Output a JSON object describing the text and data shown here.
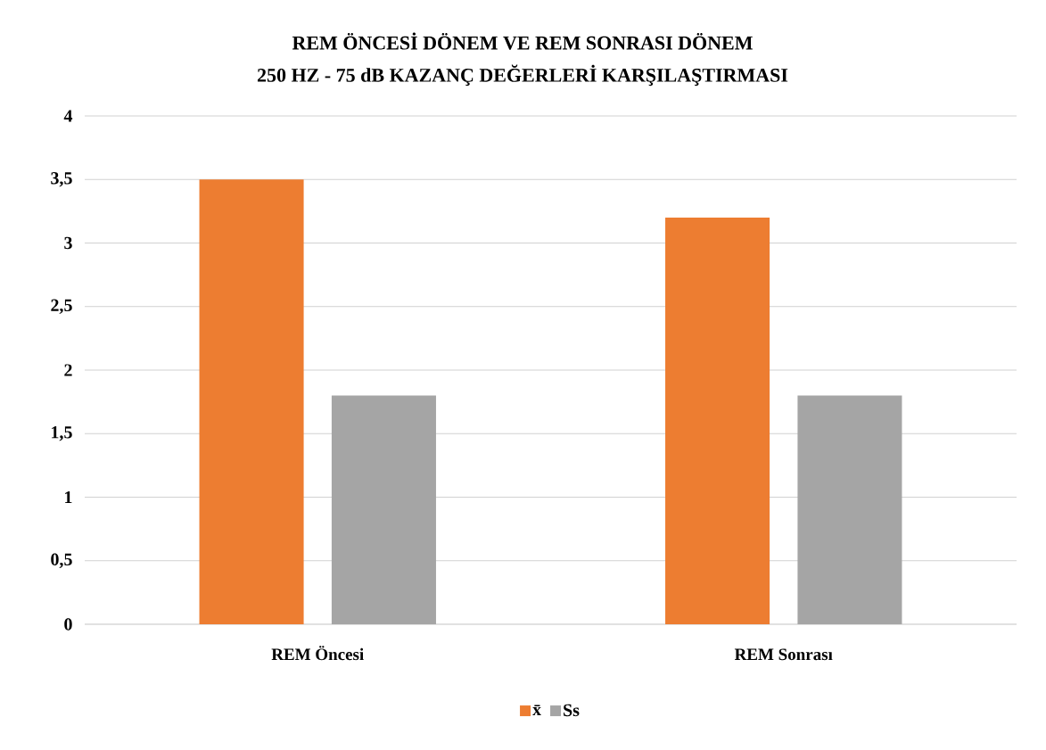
{
  "chart_data": {
    "type": "bar",
    "title": "REM ÖNCESİ DÖNEM VE REM SONRASI DÖNEM",
    "subtitle": "250 HZ - 75 dB KAZANÇ DEĞERLERİ KARŞILAŞTIRMASI",
    "categories": [
      "REM Öncesi",
      "REM Sonrası"
    ],
    "series": [
      {
        "name": "x̄",
        "color": "#ed7d31",
        "values": [
          3.5,
          3.2
        ]
      },
      {
        "name": "Ss",
        "color": "#a5a5a5",
        "values": [
          1.8,
          1.8
        ]
      }
    ],
    "ylim": [
      0,
      4
    ],
    "yticks": [
      0,
      {
        "value": 0.5,
        "label": "0,5"
      },
      1,
      {
        "value": 1.5,
        "label": "1,5"
      },
      2,
      {
        "value": 2.5,
        "label": "2,5"
      },
      3,
      {
        "value": 3.5,
        "label": "3,5"
      },
      4
    ],
    "grid": "y",
    "legend": "bottom"
  }
}
